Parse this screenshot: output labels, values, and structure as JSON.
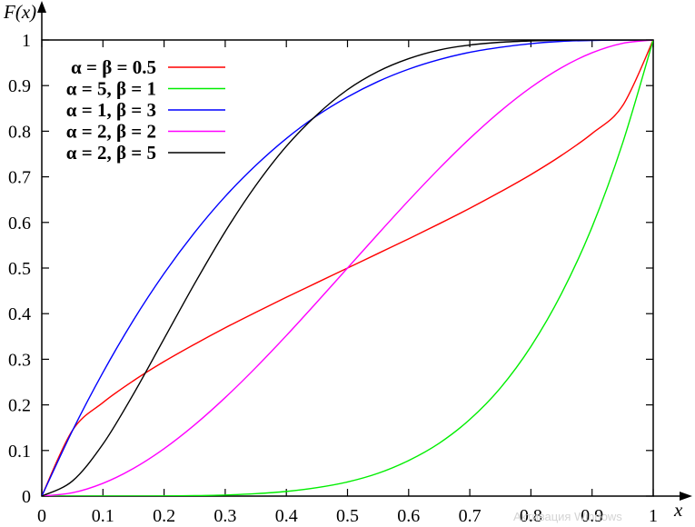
{
  "chart_data": {
    "type": "line",
    "title": "",
    "xlabel": "x",
    "ylabel": "F(x)",
    "xlim": [
      0,
      1
    ],
    "ylim": [
      0,
      1
    ],
    "xticks": [
      0,
      0.1,
      0.2,
      0.3,
      0.4,
      0.5,
      0.6,
      0.7,
      0.8,
      0.9,
      1
    ],
    "xtick_labels": [
      "0",
      "0.1",
      "0.2",
      "0.3",
      "0.4",
      "0.5",
      "0.6",
      "0.7",
      "0.8",
      "0.9",
      "1"
    ],
    "yticks": [
      0,
      0.1,
      0.2,
      0.3,
      0.4,
      0.5,
      0.6,
      0.7,
      0.8,
      0.9,
      1
    ],
    "ytick_labels": [
      "0",
      "0.1",
      "0.2",
      "0.3",
      "0.4",
      "0.5",
      "0.6",
      "0.7",
      "0.8",
      "0.9",
      "1"
    ],
    "grid": false,
    "legend_position": "top-left",
    "x": [
      0,
      0.05,
      0.1,
      0.15,
      0.2,
      0.25,
      0.3,
      0.35,
      0.4,
      0.45,
      0.5,
      0.55,
      0.6,
      0.65,
      0.7,
      0.75,
      0.8,
      0.85,
      0.9,
      0.95,
      1
    ],
    "series": [
      {
        "name": "α = β = 0.5",
        "color": "#ff0000",
        "values": [
          0,
          0.144,
          0.205,
          0.253,
          0.295,
          0.333,
          0.369,
          0.403,
          0.436,
          0.468,
          0.5,
          0.532,
          0.564,
          0.597,
          0.631,
          0.667,
          0.705,
          0.747,
          0.795,
          0.856,
          1
        ]
      },
      {
        "name": "α = 5, β = 1",
        "color": "#00ee00",
        "values": [
          0,
          0,
          1e-05,
          8e-05,
          0.00032,
          0.001,
          0.0024,
          0.0053,
          0.0102,
          0.0185,
          0.031,
          0.05,
          0.078,
          0.116,
          0.168,
          0.237,
          0.328,
          0.444,
          0.59,
          0.774,
          1
        ]
      },
      {
        "name": "α = 1, β = 3",
        "color": "#0000ff",
        "values": [
          0,
          0.143,
          0.271,
          0.386,
          0.488,
          0.578,
          0.657,
          0.725,
          0.784,
          0.834,
          0.875,
          0.909,
          0.936,
          0.957,
          0.973,
          0.984,
          0.992,
          0.997,
          0.999,
          1,
          1
        ]
      },
      {
        "name": "α = 2, β = 2",
        "color": "#ff00ff",
        "values": [
          0,
          0.00725,
          0.028,
          0.06075,
          0.104,
          0.15625,
          0.216,
          0.28175,
          0.352,
          0.42525,
          0.5,
          0.57475,
          0.648,
          0.71825,
          0.784,
          0.84375,
          0.896,
          0.93925,
          0.972,
          0.99275,
          1
        ]
      },
      {
        "name": "α = 2, β = 5",
        "color": "#000000",
        "values": [
          0,
          0.033,
          0.114,
          0.224,
          0.345,
          0.466,
          0.58,
          0.681,
          0.767,
          0.836,
          0.891,
          0.931,
          0.959,
          0.978,
          0.989,
          0.995,
          0.998,
          0.9995,
          0.9999,
          1,
          1
        ]
      }
    ],
    "annotations": [
      {
        "text": "Активация Windows",
        "color": "#d4d4d4"
      }
    ]
  }
}
